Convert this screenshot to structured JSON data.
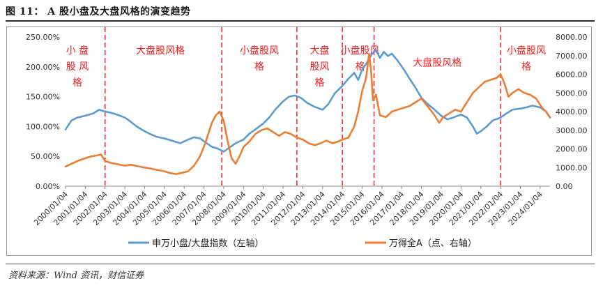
{
  "title": "图 11： A 股小盘及大盘风格的演变趋势",
  "source": "资料来源：Wind 资讯，财信证券",
  "chart_data": {
    "type": "line",
    "x": [
      "2000/01/04",
      "2001/01/04",
      "2002/01/04",
      "2003/01/04",
      "2004/01/04",
      "2005/01/04",
      "2006/01/04",
      "2007/01/04",
      "2008/01/04",
      "2009/01/04",
      "2010/01/04",
      "2011/01/04",
      "2012/01/04",
      "2013/01/04",
      "2014/01/04",
      "2015/01/04",
      "2016/01/04",
      "2017/01/04",
      "2018/01/04",
      "2019/01/04",
      "2020/01/04",
      "2021/01/04",
      "2022/01/04",
      "2023/01/04",
      "2024/01/04"
    ],
    "y_left": {
      "label": "申万小盘/大盘指数（左轴）",
      "ticks": [
        "0.00%",
        "50.00%",
        "100.00%",
        "150.00%",
        "200.00%",
        "250.00%"
      ],
      "range": [
        0,
        250
      ]
    },
    "y_right": {
      "label": "万得全A（点、右轴）",
      "ticks": [
        "0.00",
        "1000.00",
        "2000.00",
        "3000.00",
        "4000.00",
        "5000.00",
        "6000.00",
        "7000.00",
        "8000.00"
      ],
      "range": [
        0,
        8000
      ]
    },
    "series": [
      {
        "name": "申万小盘/大盘指数（左轴）",
        "axis": "left",
        "color": "#5b9bd5",
        "points": [
          [
            0,
            95
          ],
          [
            0.3,
            110
          ],
          [
            0.6,
            115
          ],
          [
            1.0,
            118
          ],
          [
            1.4,
            122
          ],
          [
            1.7,
            128
          ],
          [
            2.0,
            125
          ],
          [
            2.3,
            123
          ],
          [
            2.6,
            120
          ],
          [
            3.0,
            115
          ],
          [
            3.3,
            108
          ],
          [
            3.6,
            100
          ],
          [
            4.0,
            92
          ],
          [
            4.3,
            87
          ],
          [
            4.6,
            83
          ],
          [
            5.0,
            80
          ],
          [
            5.4,
            76
          ],
          [
            5.8,
            72
          ],
          [
            6.2,
            78
          ],
          [
            6.5,
            82
          ],
          [
            6.8,
            80
          ],
          [
            7.1,
            73
          ],
          [
            7.4,
            66
          ],
          [
            7.7,
            63
          ],
          [
            8.0,
            58
          ],
          [
            8.3,
            65
          ],
          [
            8.6,
            72
          ],
          [
            9.0,
            78
          ],
          [
            9.3,
            88
          ],
          [
            9.6,
            95
          ],
          [
            10.0,
            105
          ],
          [
            10.3,
            115
          ],
          [
            10.6,
            128
          ],
          [
            11.0,
            142
          ],
          [
            11.3,
            150
          ],
          [
            11.6,
            152
          ],
          [
            11.9,
            148
          ],
          [
            12.2,
            140
          ],
          [
            12.6,
            133
          ],
          [
            13.0,
            128
          ],
          [
            13.3,
            138
          ],
          [
            13.6,
            155
          ],
          [
            14.0,
            168
          ],
          [
            14.3,
            180
          ],
          [
            14.6,
            190
          ],
          [
            14.8,
            178
          ],
          [
            15.0,
            195
          ],
          [
            15.3,
            210
          ],
          [
            15.5,
            222
          ],
          [
            15.7,
            228
          ],
          [
            15.9,
            215
          ],
          [
            16.1,
            225
          ],
          [
            16.3,
            218
          ],
          [
            16.5,
            222
          ],
          [
            16.8,
            210
          ],
          [
            17.1,
            196
          ],
          [
            17.4,
            180
          ],
          [
            17.7,
            165
          ],
          [
            18.0,
            148
          ],
          [
            18.3,
            138
          ],
          [
            18.6,
            130
          ],
          [
            19.0,
            118
          ],
          [
            19.3,
            112
          ],
          [
            19.6,
            115
          ],
          [
            20.0,
            120
          ],
          [
            20.3,
            115
          ],
          [
            20.6,
            100
          ],
          [
            20.8,
            88
          ],
          [
            21.0,
            92
          ],
          [
            21.3,
            100
          ],
          [
            21.6,
            110
          ],
          [
            22.0,
            115
          ],
          [
            22.3,
            122
          ],
          [
            22.6,
            128
          ],
          [
            23.0,
            130
          ],
          [
            23.3,
            132
          ],
          [
            23.6,
            135
          ],
          [
            24.0,
            132
          ],
          [
            24.3,
            125
          ],
          [
            24.5,
            115
          ]
        ]
      },
      {
        "name": "万得全A（点、右轴）",
        "axis": "right",
        "color": "#ed7d31",
        "points": [
          [
            0,
            1050
          ],
          [
            0.3,
            1200
          ],
          [
            0.6,
            1350
          ],
          [
            1.0,
            1500
          ],
          [
            1.3,
            1600
          ],
          [
            1.6,
            1650
          ],
          [
            1.8,
            1700
          ],
          [
            2.0,
            1350
          ],
          [
            2.3,
            1250
          ],
          [
            2.6,
            1180
          ],
          [
            3.0,
            1100
          ],
          [
            3.3,
            1150
          ],
          [
            3.6,
            1080
          ],
          [
            4.0,
            1000
          ],
          [
            4.3,
            950
          ],
          [
            4.6,
            880
          ],
          [
            5.0,
            800
          ],
          [
            5.3,
            700
          ],
          [
            5.6,
            650
          ],
          [
            5.9,
            720
          ],
          [
            6.2,
            800
          ],
          [
            6.5,
            1100
          ],
          [
            6.8,
            1600
          ],
          [
            7.1,
            2400
          ],
          [
            7.4,
            3400
          ],
          [
            7.6,
            3800
          ],
          [
            7.8,
            4000
          ],
          [
            8.0,
            3500
          ],
          [
            8.2,
            2400
          ],
          [
            8.4,
            1500
          ],
          [
            8.6,
            1200
          ],
          [
            8.8,
            1600
          ],
          [
            9.0,
            2100
          ],
          [
            9.3,
            2400
          ],
          [
            9.6,
            2800
          ],
          [
            9.9,
            3000
          ],
          [
            10.2,
            3100
          ],
          [
            10.5,
            2900
          ],
          [
            10.8,
            2700
          ],
          [
            11.1,
            2900
          ],
          [
            11.4,
            2800
          ],
          [
            11.7,
            2600
          ],
          [
            12.0,
            2500
          ],
          [
            12.3,
            2300
          ],
          [
            12.6,
            2200
          ],
          [
            12.9,
            2300
          ],
          [
            13.2,
            2450
          ],
          [
            13.5,
            2300
          ],
          [
            13.8,
            2400
          ],
          [
            14.0,
            2500
          ],
          [
            14.3,
            2600
          ],
          [
            14.6,
            3200
          ],
          [
            14.8,
            4000
          ],
          [
            15.0,
            5100
          ],
          [
            15.2,
            5800
          ],
          [
            15.35,
            7100
          ],
          [
            15.45,
            6200
          ],
          [
            15.55,
            4600
          ],
          [
            15.7,
            4900
          ],
          [
            15.9,
            3800
          ],
          [
            16.2,
            3700
          ],
          [
            16.5,
            4000
          ],
          [
            16.8,
            4100
          ],
          [
            17.1,
            4200
          ],
          [
            17.4,
            4300
          ],
          [
            17.7,
            4500
          ],
          [
            18.0,
            4700
          ],
          [
            18.3,
            4300
          ],
          [
            18.6,
            3900
          ],
          [
            18.9,
            3400
          ],
          [
            19.1,
            3700
          ],
          [
            19.4,
            3900
          ],
          [
            19.7,
            4100
          ],
          [
            20.0,
            4000
          ],
          [
            20.3,
            4500
          ],
          [
            20.6,
            5000
          ],
          [
            20.9,
            5300
          ],
          [
            21.2,
            5600
          ],
          [
            21.5,
            5700
          ],
          [
            21.8,
            5800
          ],
          [
            22.0,
            6000
          ],
          [
            22.2,
            5500
          ],
          [
            22.4,
            4800
          ],
          [
            22.6,
            5000
          ],
          [
            22.9,
            5200
          ],
          [
            23.2,
            5000
          ],
          [
            23.5,
            4900
          ],
          [
            23.8,
            4700
          ],
          [
            24.1,
            4200
          ],
          [
            24.3,
            4000
          ],
          [
            24.5,
            3700
          ]
        ]
      }
    ],
    "regime_dividers": [
      2.0,
      7.9,
      11.7,
      14.0,
      15.6,
      22.0
    ],
    "regime_labels": [
      {
        "text": "小 盘",
        "at": 0.6,
        "row": 0
      },
      {
        "text": "股 风",
        "at": 0.6,
        "row": 1
      },
      {
        "text": "格",
        "at": 0.6,
        "row": 2
      },
      {
        "text": "大盘股风格",
        "at": 4.8,
        "row": 0
      },
      {
        "text": "小盘股风",
        "at": 9.8,
        "row": 0
      },
      {
        "text": "格",
        "at": 9.8,
        "row": 1
      },
      {
        "text": "大盘",
        "at": 12.85,
        "row": 0
      },
      {
        "text": "股风",
        "at": 12.85,
        "row": 1
      },
      {
        "text": "格",
        "at": 12.85,
        "row": 2
      },
      {
        "text": "小盘股风",
        "at": 14.9,
        "row": 0
      },
      {
        "text": "格",
        "at": 14.9,
        "row": 1
      },
      {
        "text": "大盘股风格",
        "at": 18.8,
        "row": 0.75
      },
      {
        "text": "小盘股风",
        "at": 23.3,
        "row": 0
      },
      {
        "text": "格",
        "at": 23.3,
        "row": 1
      }
    ]
  }
}
